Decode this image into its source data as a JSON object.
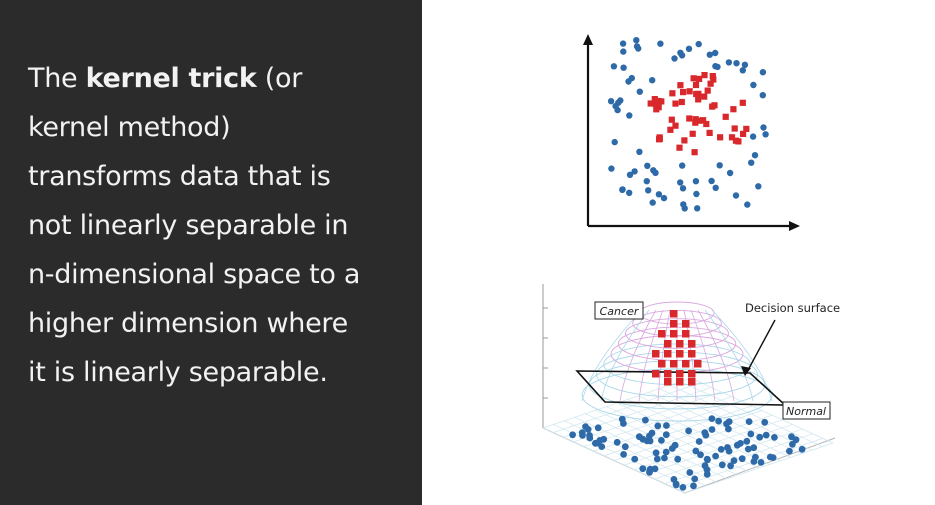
{
  "slide": {
    "text_lines": [
      {
        "pre": "The ",
        "bold": "kernel trick",
        "post": " (or"
      },
      {
        "pre": "kernel method)"
      },
      {
        "pre": "transforms data that is"
      },
      {
        "pre": "not linearly separable in"
      },
      {
        "pre": "n-dimensional space to a"
      },
      {
        "pre": "higher dimension where"
      },
      {
        "pre": "it is linearly separable."
      }
    ]
  },
  "surface_diagram": {
    "cancer_label": "Cancer",
    "normal_label": "Normal",
    "decision_label": "Decision surface"
  },
  "colors": {
    "panel": "#2b2b2c",
    "text": "#f2f2f2",
    "blue_point": "#2e6aa8",
    "red_point": "#d9282b"
  }
}
